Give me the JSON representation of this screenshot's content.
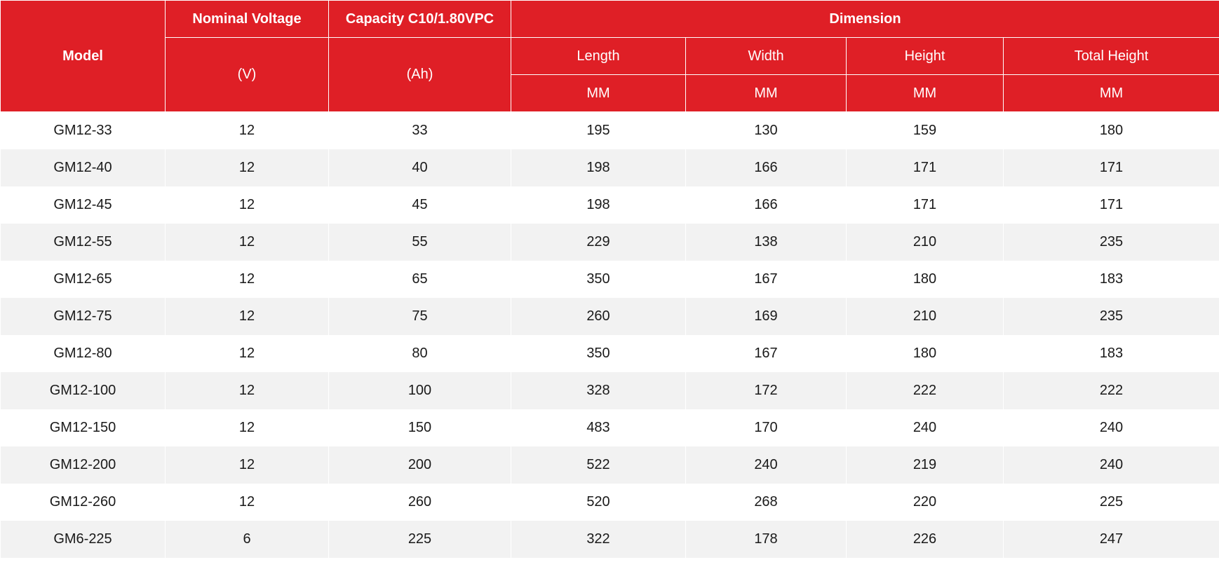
{
  "header": {
    "model": "Model",
    "nominal_voltage": "Nominal Voltage",
    "nominal_voltage_unit": "(V)",
    "capacity": "Capacity C10/1.80VPC",
    "capacity_unit": "(Ah)",
    "dimension": "Dimension",
    "length": "Length",
    "width": "Width",
    "height": "Height",
    "total_height": "Total Height",
    "length_unit": "MM",
    "width_unit": "MM",
    "height_unit": "MM",
    "total_height_unit": "MM"
  },
  "rows": [
    {
      "model": "GM12-33",
      "voltage": "12",
      "capacity": "33",
      "length": "195",
      "width": "130",
      "height": "159",
      "total_height": "180"
    },
    {
      "model": "GM12-40",
      "voltage": "12",
      "capacity": "40",
      "length": "198",
      "width": "166",
      "height": "171",
      "total_height": "171"
    },
    {
      "model": "GM12-45",
      "voltage": "12",
      "capacity": "45",
      "length": "198",
      "width": "166",
      "height": "171",
      "total_height": "171"
    },
    {
      "model": "GM12-55",
      "voltage": "12",
      "capacity": "55",
      "length": "229",
      "width": "138",
      "height": "210",
      "total_height": "235"
    },
    {
      "model": "GM12-65",
      "voltage": "12",
      "capacity": "65",
      "length": "350",
      "width": "167",
      "height": "180",
      "total_height": "183"
    },
    {
      "model": "GM12-75",
      "voltage": "12",
      "capacity": "75",
      "length": "260",
      "width": "169",
      "height": "210",
      "total_height": "235"
    },
    {
      "model": "GM12-80",
      "voltage": "12",
      "capacity": "80",
      "length": "350",
      "width": "167",
      "height": "180",
      "total_height": "183"
    },
    {
      "model": "GM12-100",
      "voltage": "12",
      "capacity": "100",
      "length": "328",
      "width": "172",
      "height": "222",
      "total_height": "222"
    },
    {
      "model": "GM12-150",
      "voltage": "12",
      "capacity": "150",
      "length": "483",
      "width": "170",
      "height": "240",
      "total_height": "240"
    },
    {
      "model": "GM12-200",
      "voltage": "12",
      "capacity": "200",
      "length": "522",
      "width": "240",
      "height": "219",
      "total_height": "240"
    },
    {
      "model": "GM12-260",
      "voltage": "12",
      "capacity": "260",
      "length": "520",
      "width": "268",
      "height": "220",
      "total_height": "225"
    },
    {
      "model": "GM6-225",
      "voltage": "6",
      "capacity": "225",
      "length": "322",
      "width": "178",
      "height": "226",
      "total_height": "247"
    }
  ],
  "colors": {
    "header_bg": "#df1f26",
    "header_text": "#ffffff",
    "row_alt_bg": "#f2f2f2",
    "row_bg": "#ffffff",
    "body_text": "#1a1a1a"
  }
}
